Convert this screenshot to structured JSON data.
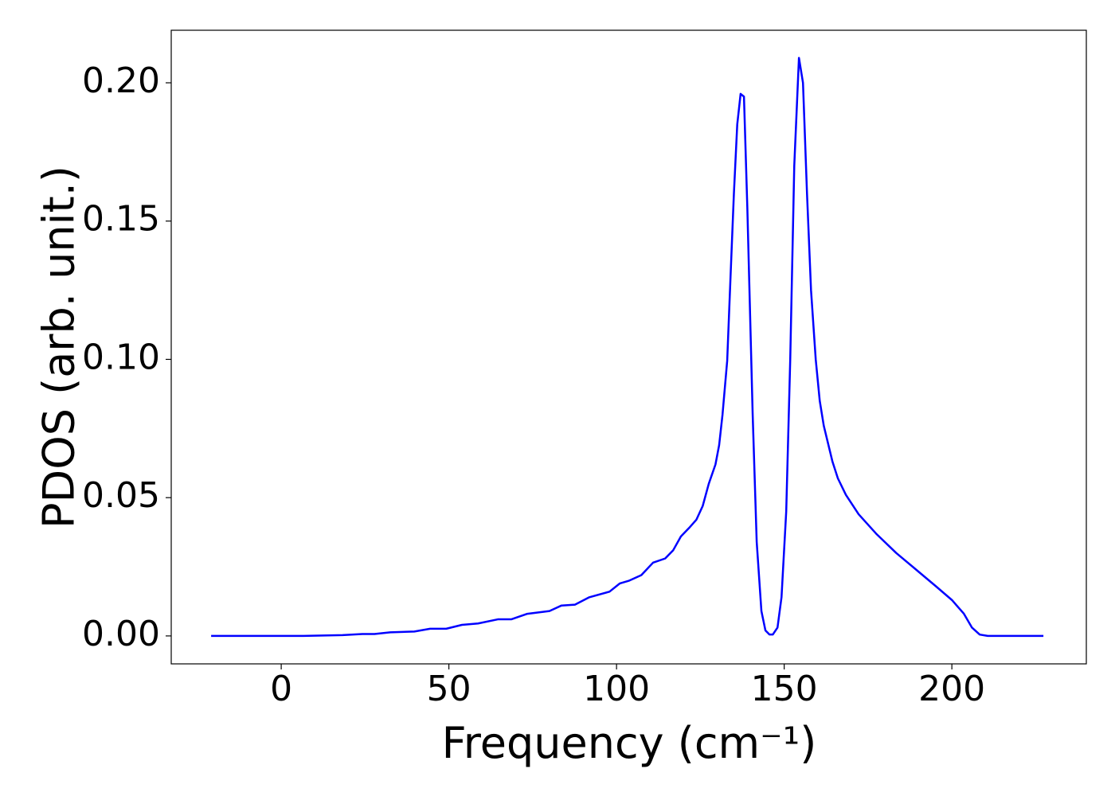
{
  "chart_data": {
    "type": "line",
    "xlabel": "Frequency (cm⁻¹)",
    "ylabel": "PDOS (arb. unit.)",
    "xlim": [
      -32.8,
      240.1
    ],
    "ylim": [
      -0.0101,
      0.219
    ],
    "xticks": [
      0,
      50,
      100,
      150,
      200
    ],
    "yticks": [
      {
        "value": 0,
        "label": "0.00"
      },
      {
        "value": 0.05,
        "label": "0.05"
      },
      {
        "value": 0.1,
        "label": "0.10"
      },
      {
        "value": 0.15,
        "label": "0.15"
      },
      {
        "value": 0.2,
        "label": "0.20"
      }
    ],
    "grid": false,
    "series": [
      {
        "color": "#0000ff",
        "x": [
          -20.9,
          6.4,
          18.3,
          24.2,
          27.8,
          32.5,
          39.7,
          44.4,
          49.2,
          53.9,
          58.7,
          64.6,
          68.6,
          73.4,
          80,
          83.6,
          87.6,
          91.9,
          97.9,
          101,
          103.8,
          107.4,
          110.9,
          114.5,
          116.9,
          119.2,
          121.6,
          123.8,
          125.7,
          127.5,
          129.5,
          130.6,
          131.6,
          133,
          134,
          135,
          136,
          137,
          138,
          139,
          140.6,
          141.8,
          143.2,
          144.4,
          145.6,
          146.6,
          148,
          149.2,
          150.6,
          151.8,
          153,
          154.4,
          155.6,
          156.8,
          158,
          159.4,
          160.6,
          161.8,
          164.4,
          166,
          168.4,
          172.2,
          177.4,
          183.4,
          189.3,
          195.2,
          200,
          203.6,
          206,
          208.3,
          210.7,
          220,
          227.3
        ],
        "values": [
          0,
          0,
          0.0003,
          0.0007,
          0.0007,
          0.0013,
          0.0016,
          0.0026,
          0.0026,
          0.004,
          0.0045,
          0.006,
          0.006,
          0.008,
          0.009,
          0.011,
          0.0113,
          0.014,
          0.016,
          0.019,
          0.02,
          0.022,
          0.0265,
          0.028,
          0.031,
          0.036,
          0.039,
          0.042,
          0.047,
          0.055,
          0.062,
          0.069,
          0.08,
          0.0995,
          0.13,
          0.16,
          0.185,
          0.196,
          0.195,
          0.155,
          0.08,
          0.034,
          0.009,
          0.002,
          0.0005,
          0.0005,
          0.003,
          0.014,
          0.045,
          0.1,
          0.17,
          0.209,
          0.2,
          0.16,
          0.125,
          0.1,
          0.085,
          0.076,
          0.063,
          0.057,
          0.051,
          0.044,
          0.037,
          0.03,
          0.024,
          0.018,
          0.013,
          0.008,
          0.003,
          0.0005,
          0,
          0,
          0
        ]
      }
    ]
  }
}
